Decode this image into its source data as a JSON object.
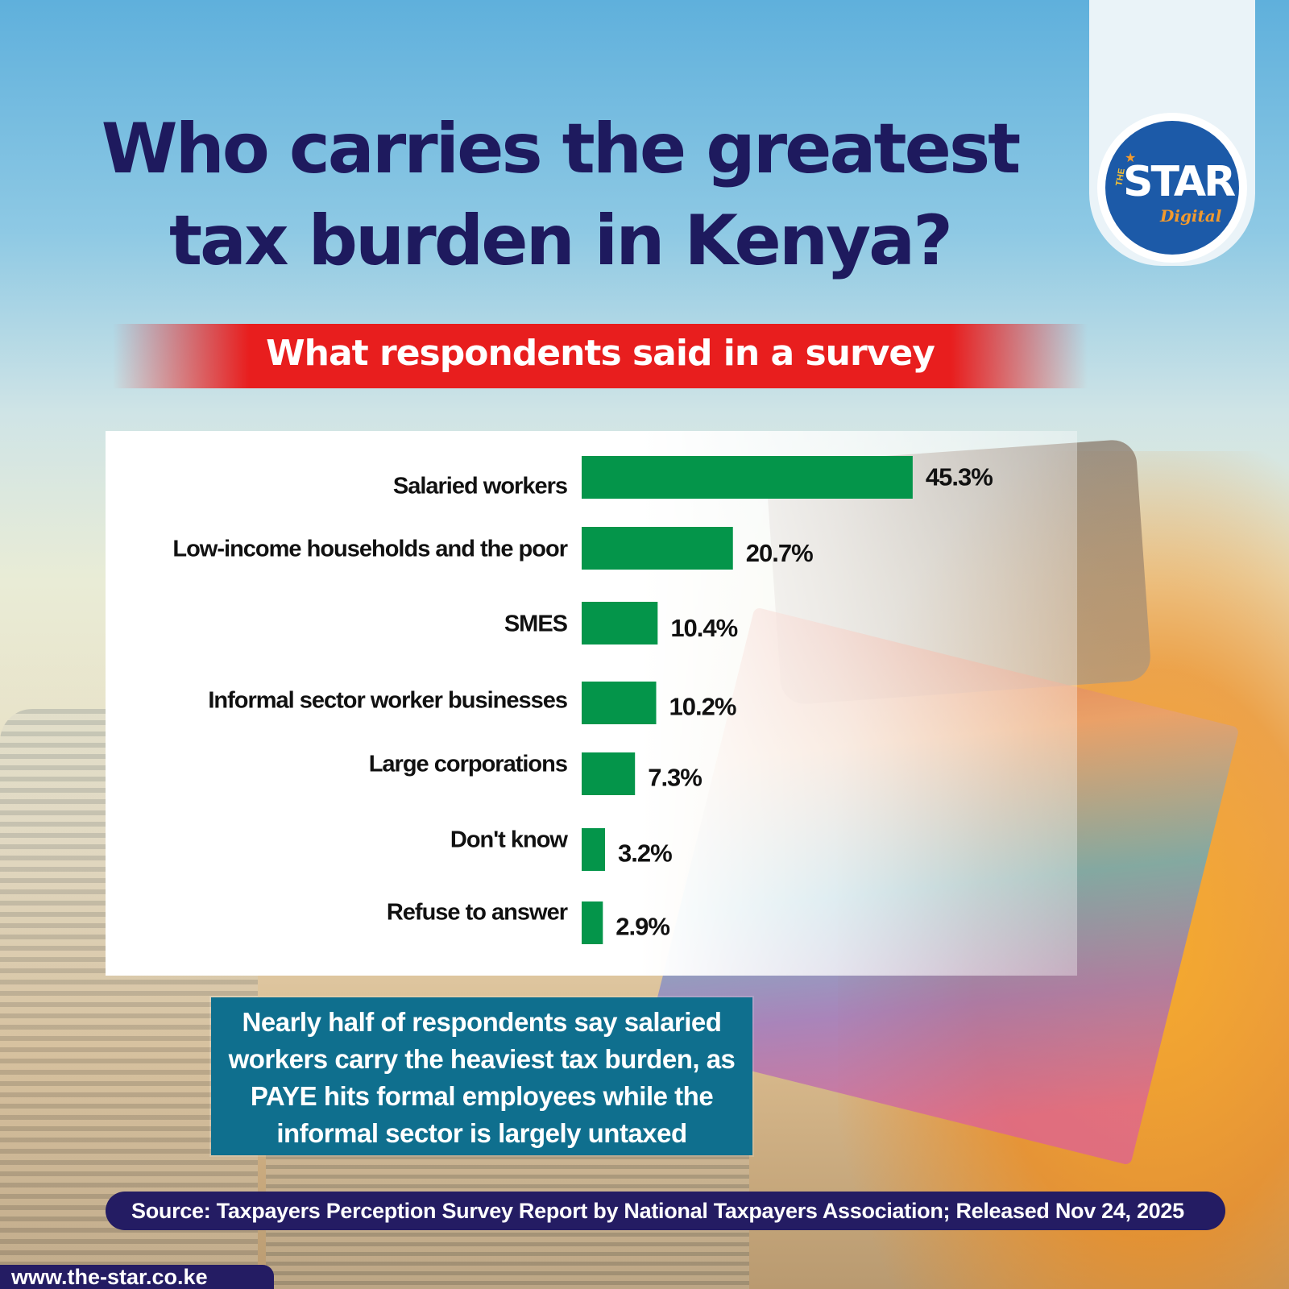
{
  "title": "Who carries the greatest tax burden in Kenya?",
  "subtitle": "What respondents said in a survey",
  "logo": {
    "the": "THE",
    "word": "STAR",
    "digital": "Digital"
  },
  "callout": "Nearly half of respondents say salaried workers carry the heaviest tax burden, as PAYE hits formal employees while the informal sector is largely untaxed",
  "source": "Source: Taxpayers Perception Survey Report by National Taxpayers Association; Released Nov 24, 2025",
  "website": "www.the-star.co.ke",
  "colors": {
    "bar": "#04954a",
    "title": "#1e1a5e",
    "subtitle_bg": "#e81e1e",
    "callout_bg": "#0f6f8e",
    "source_bg": "#241c63"
  },
  "chart_data": {
    "type": "bar",
    "orientation": "horizontal",
    "categories": [
      "Salaried workers",
      "Low-income households and the poor",
      "SMES",
      "Informal sector worker businesses",
      "Large corporations",
      "Don't know",
      "Refuse to answer"
    ],
    "values": [
      45.3,
      20.7,
      10.4,
      10.2,
      7.3,
      3.2,
      2.9
    ],
    "value_labels": [
      "45.3%",
      "20.7%",
      "10.4%",
      "10.2%",
      "7.3%",
      "3.2%",
      "2.9%"
    ],
    "unit": "%"
  }
}
